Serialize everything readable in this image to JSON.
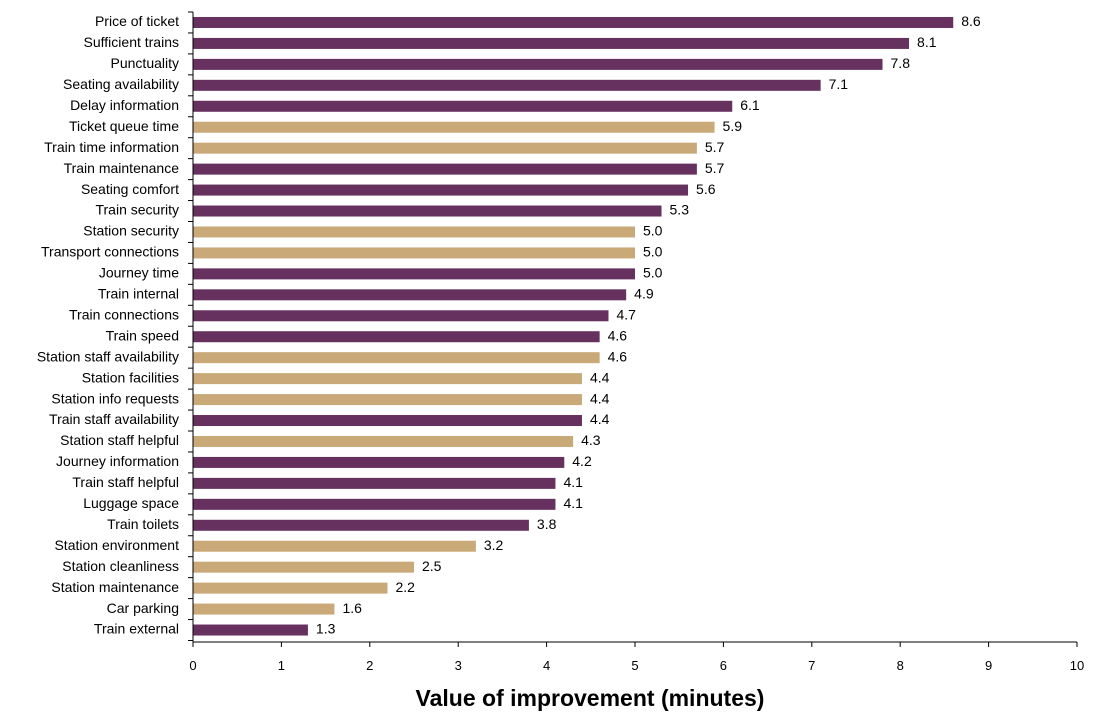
{
  "chart_data": {
    "type": "bar",
    "orientation": "horizontal",
    "xlabel": "Value of improvement (minutes)",
    "xlim": [
      0,
      10
    ],
    "xticks": [
      "0",
      "1",
      "2",
      "3",
      "4",
      "5",
      "6",
      "7",
      "8",
      "9",
      "10"
    ],
    "grid": false,
    "legend": "none",
    "colors": {
      "purple": "#66305f",
      "tan": "#c9a978"
    },
    "bars": [
      {
        "label": "Price of ticket",
        "value": 8.6,
        "display": "8.6",
        "color": "purple"
      },
      {
        "label": "Sufficient trains",
        "value": 8.1,
        "display": "8.1",
        "color": "purple"
      },
      {
        "label": "Punctuality",
        "value": 7.8,
        "display": "7.8",
        "color": "purple"
      },
      {
        "label": "Seating availability",
        "value": 7.1,
        "display": "7.1",
        "color": "purple"
      },
      {
        "label": "Delay information",
        "value": 6.1,
        "display": "6.1",
        "color": "purple"
      },
      {
        "label": "Ticket queue time",
        "value": 5.9,
        "display": "5.9",
        "color": "tan"
      },
      {
        "label": "Train time information",
        "value": 5.7,
        "display": "5.7",
        "color": "tan"
      },
      {
        "label": "Train maintenance",
        "value": 5.7,
        "display": "5.7",
        "color": "purple"
      },
      {
        "label": "Seating comfort",
        "value": 5.6,
        "display": "5.6",
        "color": "purple"
      },
      {
        "label": "Train security",
        "value": 5.3,
        "display": "5.3",
        "color": "purple"
      },
      {
        "label": "Station security",
        "value": 5.0,
        "display": "5.0",
        "color": "tan"
      },
      {
        "label": "Transport connections",
        "value": 5.0,
        "display": "5.0",
        "color": "tan"
      },
      {
        "label": "Journey time",
        "value": 5.0,
        "display": "5.0",
        "color": "purple"
      },
      {
        "label": "Train internal",
        "value": 4.9,
        "display": "4.9",
        "color": "purple"
      },
      {
        "label": "Train connections",
        "value": 4.7,
        "display": "4.7",
        "color": "purple"
      },
      {
        "label": "Train speed",
        "value": 4.6,
        "display": "4.6",
        "color": "purple"
      },
      {
        "label": "Station staff availability",
        "value": 4.6,
        "display": "4.6",
        "color": "tan"
      },
      {
        "label": "Station facilities",
        "value": 4.4,
        "display": "4.4",
        "color": "tan"
      },
      {
        "label": "Station info requests",
        "value": 4.4,
        "display": "4.4",
        "color": "tan"
      },
      {
        "label": "Train staff availability",
        "value": 4.4,
        "display": "4.4",
        "color": "purple"
      },
      {
        "label": "Station staff helpful",
        "value": 4.3,
        "display": "4.3",
        "color": "tan"
      },
      {
        "label": "Journey information",
        "value": 4.2,
        "display": "4.2",
        "color": "purple"
      },
      {
        "label": "Train staff helpful",
        "value": 4.1,
        "display": "4.1",
        "color": "purple"
      },
      {
        "label": "Luggage space",
        "value": 4.1,
        "display": "4.1",
        "color": "purple"
      },
      {
        "label": "Train toilets",
        "value": 3.8,
        "display": "3.8",
        "color": "purple"
      },
      {
        "label": "Station environment",
        "value": 3.2,
        "display": "3.2",
        "color": "tan"
      },
      {
        "label": "Station cleanliness",
        "value": 2.5,
        "display": "2.5",
        "color": "tan"
      },
      {
        "label": "Station maintenance",
        "value": 2.2,
        "display": "2.2",
        "color": "tan"
      },
      {
        "label": "Car parking",
        "value": 1.6,
        "display": "1.6",
        "color": "tan"
      },
      {
        "label": "Train external",
        "value": 1.3,
        "display": "1.3",
        "color": "purple"
      }
    ]
  }
}
